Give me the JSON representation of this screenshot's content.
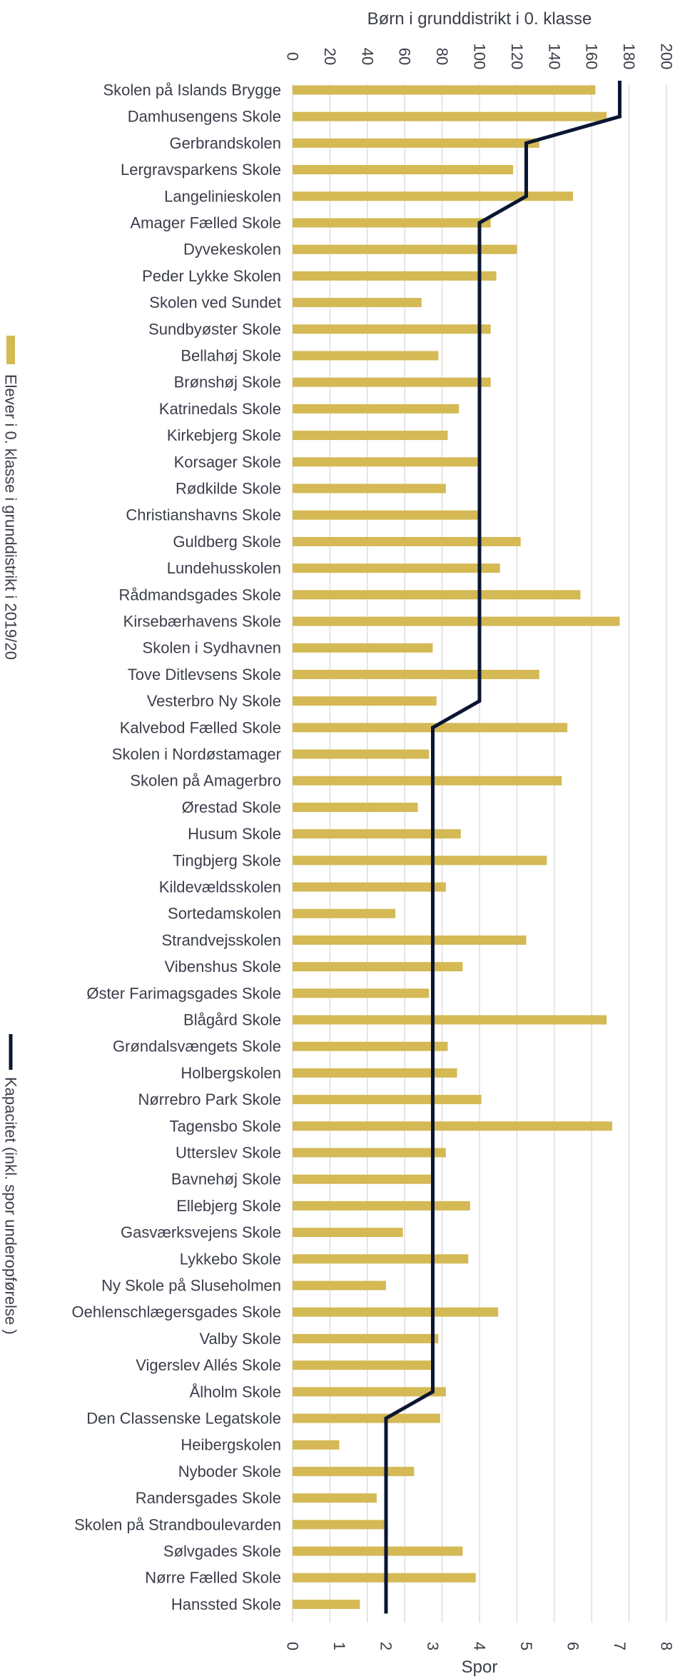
{
  "chart_data": {
    "type": "bar",
    "orientation": "horizontal",
    "top_axis_title": "Børn i grunddistrikt i 0. klasse",
    "bottom_axis_title": "Spor",
    "top_axis": {
      "min": 0,
      "max": 200,
      "ticks": [
        "0",
        "20",
        "40",
        "60",
        "80",
        "100",
        "120",
        "140",
        "160",
        "180",
        "200"
      ]
    },
    "bottom_axis": {
      "min": 0,
      "max": 8,
      "ticks": [
        "0",
        "1",
        "2",
        "3",
        "4",
        "5",
        "6",
        "7",
        "8"
      ]
    },
    "grid": true,
    "legend_position": "left",
    "colors": {
      "bar": "#d4b955",
      "line": "#0b1632",
      "grid": "#d9d9d9",
      "text": "#3b3e4a"
    },
    "categories": [
      "Skolen på Islands Brygge",
      "Damhusengens Skole",
      "Gerbrandskolen",
      "Lergravsparkens Skole",
      "Langelinieskolen",
      "Amager Fælled Skole",
      "Dyvekeskolen",
      "Peder Lykke Skolen",
      "Skolen ved Sundet",
      "Sundbyøster Skole",
      "Bellahøj Skole",
      "Brønshøj Skole",
      "Katrinedals Skole",
      "Kirkebjerg Skole",
      "Korsager Skole",
      "Rødkilde Skole",
      "Christianshavns Skole",
      "Guldberg Skole",
      "Lundehusskolen",
      "Rådmandsgades Skole",
      "Kirsebærhavens Skole",
      "Skolen i Sydhavnen",
      "Tove Ditlevsens Skole",
      "Vesterbro Ny Skole",
      "Kalvebod Fælled Skole",
      "Skolen i Nordøstamager",
      "Skolen på Amagerbro",
      "Ørestad Skole",
      "Husum Skole",
      "Tingbjerg Skole",
      "Kildevældsskolen",
      "Sortedamskolen",
      "Strandvejsskolen",
      "Vibenshus Skole",
      "Øster Farimagsgades Skole",
      "Blågård Skole",
      "Grøndalsvængets Skole",
      "Holbergskolen",
      "Nørrebro Park Skole",
      "Tagensbo Skole",
      "Utterslev Skole",
      "Bavnehøj Skole",
      "Ellebjerg Skole",
      "Gasværksvejens Skole",
      "Lykkebo Skole",
      "Ny Skole på Sluseholmen",
      "Oehlenschlægersgades Skole",
      "Valby Skole",
      "Vigerslev Allés Skole",
      "Ålholm Skole",
      "Den Classenske Legatskole",
      "Heibergskolen",
      "Nyboder Skole",
      "Randersgades Skole",
      "Skolen på Strandboulevarden",
      "Sølvgades Skole",
      "Nørre Fælled Skole",
      "Hanssted Skole"
    ],
    "series": [
      {
        "name": "Elever i 0. klasse i grunddistrikt i 2019/20",
        "type": "bar",
        "axis": "top",
        "values": [
          162,
          168,
          132,
          118,
          150,
          106,
          120,
          109,
          69,
          106,
          78,
          106,
          89,
          83,
          100,
          82,
          100,
          122,
          111,
          154,
          175,
          75,
          132,
          77,
          147,
          73,
          144,
          67,
          90,
          136,
          82,
          55,
          125,
          91,
          73,
          168,
          83,
          88,
          101,
          171,
          82,
          74,
          95,
          59,
          94,
          50,
          110,
          78,
          75,
          82,
          79,
          25,
          65,
          45,
          49,
          91,
          98,
          36
        ]
      },
      {
        "name": "Kapacitet (inkl. spor underopførelse )",
        "type": "line",
        "axis": "bottom",
        "values": [
          7,
          7,
          5,
          5,
          5,
          4,
          4,
          4,
          4,
          4,
          4,
          4,
          4,
          4,
          4,
          4,
          4,
          4,
          4,
          4,
          4,
          4,
          4,
          4,
          3,
          3,
          3,
          3,
          3,
          3,
          3,
          3,
          3,
          3,
          3,
          3,
          3,
          3,
          3,
          3,
          3,
          3,
          3,
          3,
          3,
          3,
          3,
          3,
          3,
          3,
          2,
          2,
          2,
          2,
          2,
          2,
          2,
          2
        ]
      }
    ],
    "legend": [
      {
        "label": "Elever i 0. klasse i grunddistrikt i 2019/20",
        "kind": "bar"
      },
      {
        "label": "Kapacitet (inkl. spor underopførelse )",
        "kind": "line"
      }
    ]
  }
}
